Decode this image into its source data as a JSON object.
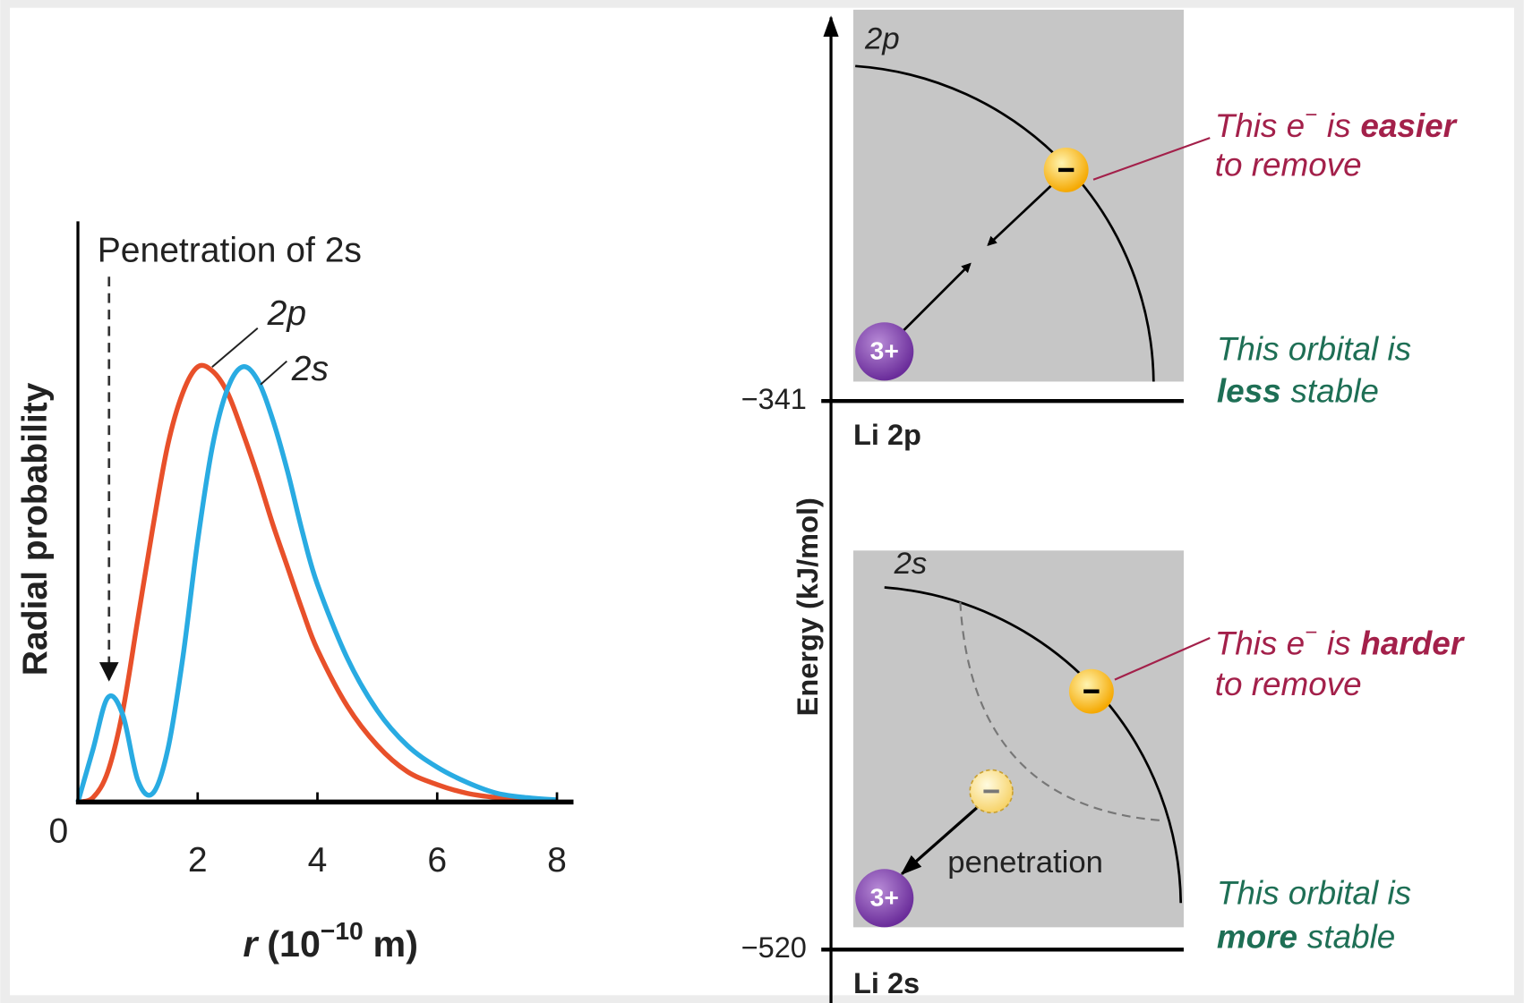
{
  "chart_data": {
    "type": "line",
    "annotation": "Penetration of 2s",
    "ylabel": "Radial probability",
    "xlabel_parts": [
      "r",
      "(10",
      "−10",
      "m)"
    ],
    "x": [
      0,
      0.25,
      0.5,
      0.75,
      1,
      1.25,
      1.5,
      1.75,
      2,
      2.25,
      2.5,
      2.75,
      3,
      3.25,
      3.5,
      3.75,
      4,
      4.5,
      5,
      5.5,
      6,
      6.5,
      7,
      7.5,
      8
    ],
    "series": [
      {
        "name": "2p",
        "color": "#e8502a",
        "values": [
          0,
          0.01,
          0.07,
          0.21,
          0.42,
          0.63,
          0.82,
          0.94,
          1.0,
          0.99,
          0.94,
          0.85,
          0.75,
          0.64,
          0.54,
          0.44,
          0.35,
          0.22,
          0.13,
          0.07,
          0.04,
          0.02,
          0.01,
          0.005,
          0.003
        ]
      },
      {
        "name": "2s",
        "color": "#29abe2",
        "values": [
          0,
          0.12,
          0.24,
          0.2,
          0.05,
          0.02,
          0.12,
          0.33,
          0.6,
          0.82,
          0.95,
          1.0,
          0.97,
          0.88,
          0.76,
          0.62,
          0.5,
          0.33,
          0.21,
          0.13,
          0.08,
          0.045,
          0.02,
          0.01,
          0.005
        ]
      }
    ],
    "xlim": [
      0,
      8
    ],
    "xticks": [
      0,
      2,
      4,
      6,
      8
    ],
    "ylim": [
      0,
      1.1
    ]
  },
  "diagram": {
    "energy_axis_label": "Energy (kJ/mol)",
    "levels": [
      {
        "energy": {
          "value": -341,
          "label": "−341"
        },
        "name": "Li 2p",
        "orbital": "2p",
        "nucleus": "3+",
        "electron_note": [
          "This e",
          "−",
          "is",
          "easier",
          "to remove"
        ],
        "stability_note": [
          "This orbital is",
          "less",
          "stable"
        ]
      },
      {
        "energy": {
          "value": -520,
          "label": "−520"
        },
        "name": "Li 2s",
        "orbital": "2s",
        "nucleus": "3+",
        "electron_note": [
          "This e",
          "−",
          "is",
          "harder",
          "to remove"
        ],
        "stability_note": [
          "This orbital is",
          "more",
          "stable"
        ],
        "penetration": "penetration"
      }
    ]
  }
}
